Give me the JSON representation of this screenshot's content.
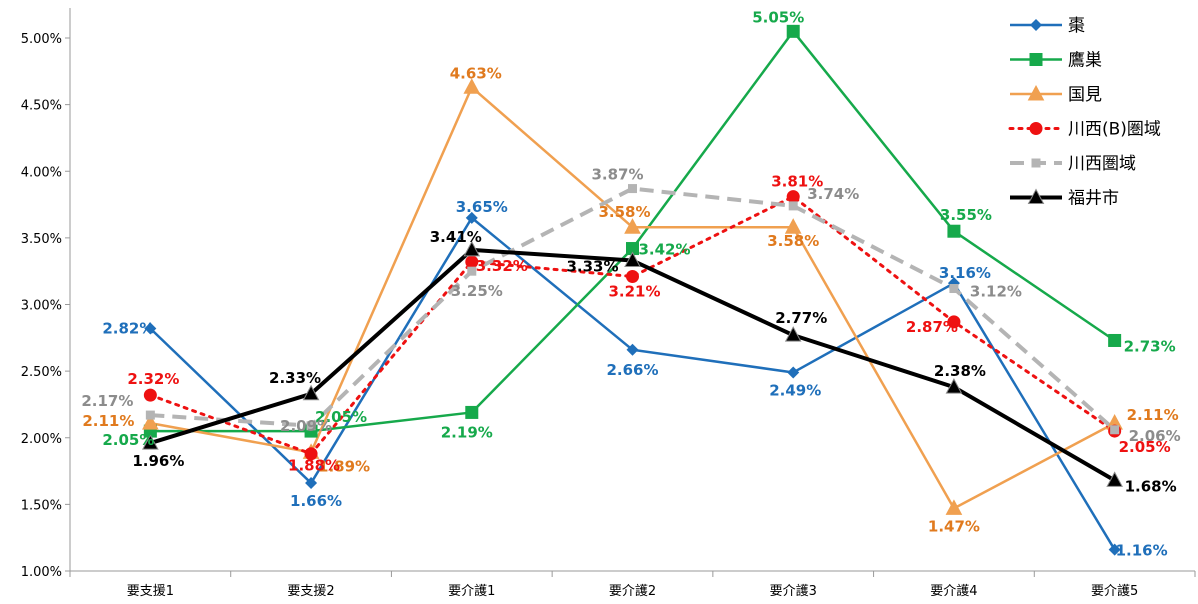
{
  "chart_data": {
    "type": "line",
    "categories": [
      "要支援1",
      "要支援2",
      "要介護1",
      "要介護2",
      "要介護3",
      "要介護4",
      "要介護5"
    ],
    "ylim": [
      0.01,
      0.05
    ],
    "yticks": [
      "1.00%",
      "1.50%",
      "2.00%",
      "2.50%",
      "3.00%",
      "3.50%",
      "4.00%",
      "4.50%",
      "5.00%"
    ],
    "grid": false,
    "legend_position": "top-right",
    "series": [
      {
        "name": "棗",
        "color": "#1f6fba",
        "marker": "diamond",
        "dash": "solid",
        "width": 2.5,
        "values": [
          0.0282,
          0.0166,
          0.0365,
          0.0266,
          0.0249,
          0.0316,
          0.0116
        ],
        "labels": [
          "2.82%",
          "1.66%",
          "3.65%",
          "2.66%",
          "2.49%",
          "3.16%",
          "1.16%"
        ]
      },
      {
        "name": "鷹巣",
        "color": "#16a94b",
        "marker": "square",
        "dash": "solid",
        "width": 2.5,
        "values": [
          0.0205,
          0.0205,
          0.0219,
          0.0342,
          0.0505,
          0.0355,
          0.0273
        ],
        "labels": [
          "2.05%",
          "2.05%",
          "2.19%",
          "3.42%",
          "5.05%",
          "3.55%",
          "2.73%"
        ]
      },
      {
        "name": "国見",
        "color": "#f0a050",
        "marker": "triangle",
        "dash": "solid",
        "width": 2.5,
        "values": [
          0.0211,
          0.0189,
          0.0463,
          0.0358,
          0.0358,
          0.0147,
          0.0211
        ],
        "labels": [
          "2.11%",
          "1.89%",
          "4.63%",
          "3.58%",
          "3.58%",
          "1.47%",
          "2.11%"
        ]
      },
      {
        "name": "川西(B)圏域",
        "color": "#ee1111",
        "marker": "circle",
        "dash": "dot",
        "width": 3,
        "values": [
          0.0232,
          0.0188,
          0.0332,
          0.0321,
          0.0381,
          0.0287,
          0.0205
        ],
        "labels": [
          "2.32%",
          "1.88%",
          "3.32%",
          "3.21%",
          "3.81%",
          "2.87%",
          "2.05%"
        ]
      },
      {
        "name": "川西圏域",
        "color": "#b4b4b4",
        "marker": "square-small",
        "dash": "dash",
        "width": 4,
        "values": [
          0.0217,
          0.0209,
          0.0325,
          0.0387,
          0.0374,
          0.0312,
          0.0206
        ],
        "labels": [
          "2.17%",
          "2.09%",
          "3.25%",
          "3.87%",
          "3.74%",
          "3.12%",
          "2.06%"
        ]
      },
      {
        "name": "福井市",
        "color": "#000000",
        "marker": "triangle",
        "dash": "solid",
        "width": 4,
        "values": [
          0.0196,
          0.0233,
          0.0341,
          0.0333,
          0.0277,
          0.0238,
          0.0168
        ],
        "labels": [
          "1.96%",
          "2.33%",
          "3.41%",
          "3.33%",
          "2.77%",
          "2.38%",
          "1.68%"
        ]
      }
    ]
  }
}
